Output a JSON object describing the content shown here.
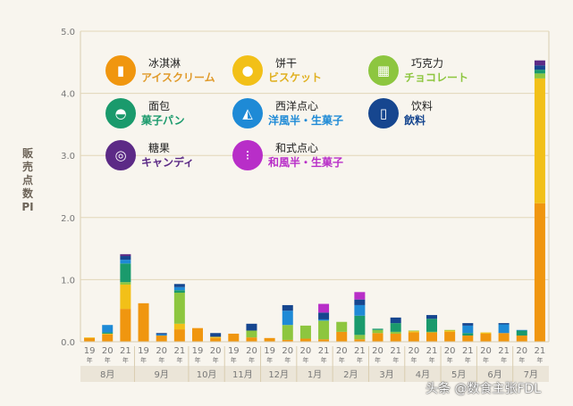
{
  "chart_data": {
    "type": "bar",
    "stacked": true,
    "title": "",
    "ylabel": "販売点数PI",
    "ylim": [
      0,
      5
    ],
    "yticks": [
      "0.0",
      "1.0",
      "2.0",
      "3.0",
      "4.0",
      "5.0"
    ],
    "grid": true,
    "legend_placement": "top-left",
    "months": [
      {
        "label": "8月",
        "years": [
          "19",
          "20",
          "21"
        ]
      },
      {
        "label": "9月",
        "years": [
          "19",
          "20",
          "21"
        ]
      },
      {
        "label": "10月",
        "years": [
          "19",
          "20"
        ]
      },
      {
        "label": "11月",
        "years": [
          "19",
          "20"
        ]
      },
      {
        "label": "12月",
        "years": [
          "19",
          "20"
        ]
      },
      {
        "label": "1月",
        "years": [
          "20",
          "21"
        ]
      },
      {
        "label": "2月",
        "years": [
          "20",
          "21"
        ]
      },
      {
        "label": "3月",
        "years": [
          "20",
          "21"
        ]
      },
      {
        "label": "4月",
        "years": [
          "20",
          "21"
        ]
      },
      {
        "label": "5月",
        "years": [
          "20",
          "21"
        ]
      },
      {
        "label": "6月",
        "years": [
          "20",
          "21"
        ]
      },
      {
        "label": "7月",
        "years": [
          "20",
          "21"
        ]
      }
    ],
    "year_suffix": "年",
    "series": [
      {
        "name": "冰淇淋",
        "name_ja": "アイスクリーム",
        "color": "#f0960f",
        "icon": "ice-cream-icon",
        "values": [
          0.06,
          0.12,
          0.53,
          0.62,
          0.1,
          0.2,
          0.22,
          0.06,
          0.13,
          0.07,
          0.06,
          0.03,
          0.05,
          0.04,
          0.16,
          0.04,
          0.14,
          0.13,
          0.15,
          0.15,
          0.16,
          0.1,
          0.13,
          0.14,
          0.1,
          2.23
        ]
      },
      {
        "name": "饼干",
        "name_ja": "ビスケット",
        "color": "#f2c018",
        "icon": "biscuit-icon",
        "values": [
          0.01,
          0.01,
          0.39,
          0,
          0,
          0.09,
          0,
          0.02,
          0,
          0,
          0,
          0,
          0,
          0,
          0,
          0,
          0,
          0,
          0.02,
          0,
          0.02,
          0,
          0.02,
          0,
          0,
          2.01
        ]
      },
      {
        "name": "巧克力",
        "name_ja": "チョコレート",
        "color": "#8dc63f",
        "icon": "chocolate-icon",
        "values": [
          0,
          0,
          0.04,
          0,
          0,
          0.5,
          0,
          0,
          0,
          0.11,
          0,
          0.24,
          0.21,
          0.3,
          0.16,
          0.07,
          0.05,
          0.03,
          0.01,
          0.01,
          0.01,
          0,
          0,
          0,
          0,
          0.08
        ]
      },
      {
        "name": "面包",
        "name_ja": "菓子パン",
        "color": "#1a9a6c",
        "icon": "bread-icon",
        "values": [
          0,
          0.02,
          0.3,
          0,
          0,
          0.04,
          0,
          0,
          0,
          0,
          0,
          0,
          0,
          0,
          0,
          0.31,
          0.02,
          0.14,
          0,
          0.21,
          0,
          0.04,
          0,
          0,
          0.08,
          0.06
        ]
      },
      {
        "name": "西洋点心",
        "name_ja": "洋風半・生菓子",
        "color": "#1e8ad6",
        "icon": "cake-icon",
        "values": [
          0,
          0.12,
          0.06,
          0,
          0.02,
          0.05,
          0,
          0,
          0,
          0,
          0,
          0.23,
          0,
          0.02,
          0,
          0.17,
          0,
          0,
          0,
          0,
          0,
          0.12,
          0,
          0.14,
          0.01,
          0
        ]
      },
      {
        "name": "饮料",
        "name_ja": "飲料",
        "color": "#16468f",
        "icon": "drink-icon",
        "values": [
          0,
          0,
          0.06,
          0,
          0.02,
          0.05,
          0,
          0.06,
          0,
          0.11,
          0,
          0.09,
          0,
          0.11,
          0,
          0.09,
          0,
          0.09,
          0,
          0.06,
          0,
          0.04,
          0,
          0.02,
          0,
          0.07
        ]
      },
      {
        "name": "糖果",
        "name_ja": "キャンディ",
        "color": "#5c2a86",
        "icon": "candy-icon",
        "values": [
          0,
          0,
          0.03,
          0,
          0,
          0,
          0,
          0,
          0,
          0,
          0,
          0,
          0,
          0,
          0,
          0,
          0,
          0,
          0,
          0,
          0,
          0,
          0,
          0,
          0,
          0.08
        ]
      },
      {
        "name": "和式点心",
        "name_ja": "和風半・生菓子",
        "color": "#b82ec8",
        "icon": "dango-icon",
        "values": [
          0,
          0,
          0,
          0,
          0,
          0,
          0,
          0,
          0,
          0,
          0,
          0,
          0,
          0.14,
          0,
          0.12,
          0,
          0,
          0,
          0,
          0,
          0,
          0,
          0,
          0,
          0
        ]
      }
    ]
  },
  "watermark": "头条 @数食主张FDL"
}
